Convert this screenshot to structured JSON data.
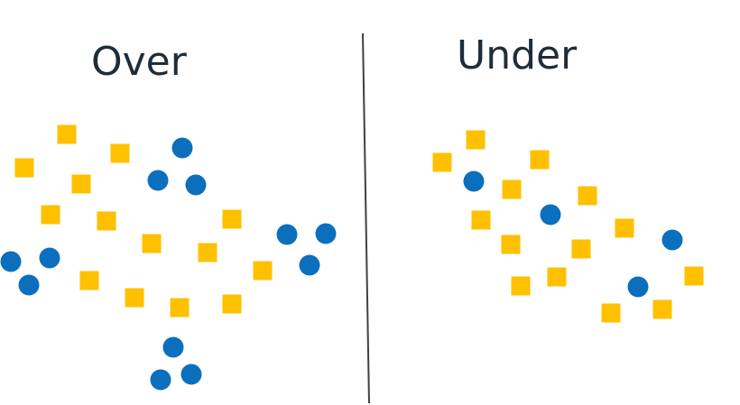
{
  "panels": {
    "left": {
      "title": "Over"
    },
    "right": {
      "title": "Under"
    }
  },
  "colors": {
    "square": "#ffc000",
    "circle": "#0b6fbe",
    "divider": "#404040",
    "text": "#1f2d3a"
  },
  "legend_shapes": {
    "square": "yellow-square",
    "circle": "blue-circle"
  }
}
